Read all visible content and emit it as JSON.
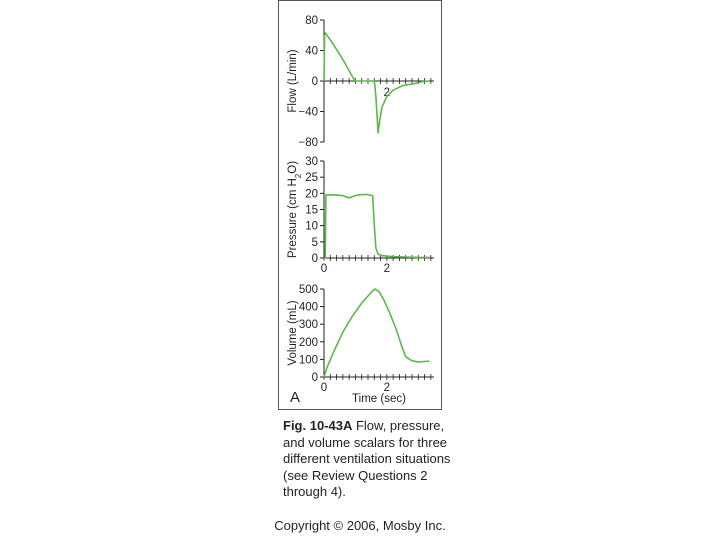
{
  "panel_letter": "A",
  "caption": {
    "fig_label": "Fig. 10-43A",
    "text": " Flow, pressure, and volume scalars for three different ventilation situations (see Review Questions 2 through 4)."
  },
  "copyright": "Copyright © 2006, Mosby Inc.",
  "colors": {
    "trace": "#5cb84a",
    "axis": "#231f20",
    "frame": "#555555"
  },
  "chart_data": [
    {
      "type": "line",
      "ylabel": "Flow (L/min)",
      "xlabel": "",
      "ylim": [
        -80,
        80
      ],
      "xlim": [
        0,
        3.5
      ],
      "yticks": [
        80,
        40,
        0,
        -40,
        -80
      ],
      "ytick_labels": [
        "80",
        "40",
        "0",
        "−40",
        "−80"
      ],
      "xtick_labels": [
        {
          "x": 2,
          "label": "2"
        }
      ],
      "series": [
        {
          "x": [
            0,
            0.02,
            0.05,
            0.1,
            0.3,
            0.6,
            0.9,
            1.0,
            1.6,
            1.65,
            1.72,
            1.78,
            1.85,
            2.0,
            2.2,
            2.5,
            2.8,
            3.1,
            3.35
          ],
          "y": [
            0,
            60,
            63,
            60,
            48,
            28,
            6,
            0,
            0,
            -20,
            -68,
            -50,
            -34,
            -20,
            -12,
            -6,
            -4,
            -1,
            0
          ]
        }
      ]
    },
    {
      "type": "line",
      "ylabel": "Pressure (cm H2O)",
      "xlabel": "",
      "ylim": [
        0,
        30
      ],
      "xlim": [
        0,
        3.5
      ],
      "yticks": [
        30,
        25,
        20,
        15,
        10,
        5,
        0
      ],
      "ytick_labels": [
        "30",
        "25",
        "20",
        "15",
        "10",
        "5",
        "0"
      ],
      "xtick_labels": [
        {
          "x": 0,
          "label": "0"
        },
        {
          "x": 2,
          "label": "2"
        }
      ],
      "series": [
        {
          "x": [
            0,
            0.04,
            0.06,
            0.3,
            0.6,
            0.8,
            1.0,
            1.2,
            1.4,
            1.55,
            1.6,
            1.65,
            1.72,
            1.85,
            2.2,
            2.6,
            3.0,
            3.35
          ],
          "y": [
            0,
            0,
            19.5,
            19.5,
            19.3,
            18.6,
            19.3,
            19.6,
            19.6,
            19.2,
            10,
            3,
            1.2,
            0.7,
            0.4,
            0.3,
            0.2,
            0.2
          ]
        }
      ]
    },
    {
      "type": "line",
      "ylabel": "Volume (mL)",
      "xlabel": "Time (sec)",
      "ylim": [
        0,
        500
      ],
      "xlim": [
        0,
        3.5
      ],
      "yticks": [
        500,
        400,
        300,
        200,
        100,
        0
      ],
      "ytick_labels": [
        "500",
        "400",
        "300",
        "200",
        "100",
        "0"
      ],
      "xtick_labels": [
        {
          "x": 0,
          "label": "0"
        },
        {
          "x": 2,
          "label": "2"
        }
      ],
      "series": [
        {
          "x": [
            0,
            0.1,
            0.3,
            0.6,
            0.9,
            1.2,
            1.5,
            1.62,
            1.75,
            1.9,
            2.1,
            2.3,
            2.5,
            2.6,
            2.8,
            3.0,
            3.2,
            3.35
          ],
          "y": [
            0,
            55,
            140,
            255,
            345,
            420,
            480,
            500,
            485,
            440,
            360,
            270,
            160,
            115,
            92,
            86,
            88,
            90
          ]
        }
      ]
    }
  ]
}
